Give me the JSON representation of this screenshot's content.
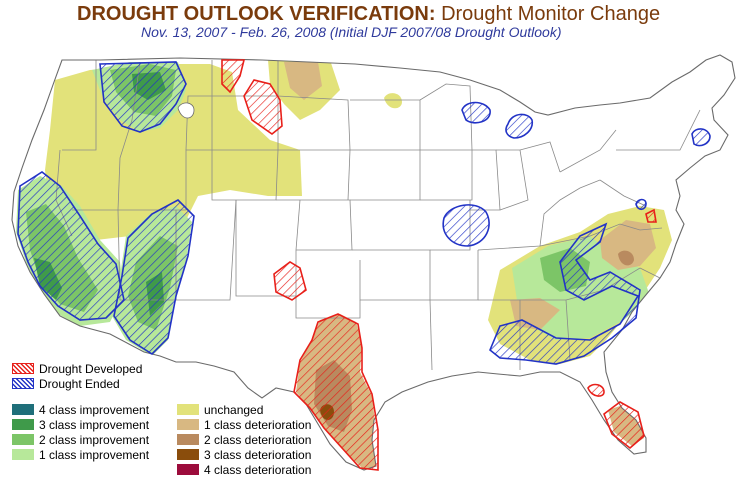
{
  "title": {
    "main": "DROUGHT OUTLOOK VERIFICATION:",
    "sub": "Drought Monitor Change"
  },
  "subtitle": "Nov. 13, 2007 - Feb. 26, 2008 (Initial DJF 2007/08 Drought Outlook)",
  "colors": {
    "improve4": "#1f6f7a",
    "improve3": "#3f9a4a",
    "improve2": "#7cc567",
    "improve1": "#b7e89a",
    "unchanged": "#e2e27a",
    "deteriorate1": "#d8b882",
    "deteriorate2": "#b98a5f",
    "deteriorate3": "#8a4d0c",
    "deteriorate4": "#9c0c3c",
    "developed_hatch": "#e8201a",
    "ended_hatch": "#2233c6",
    "state_lines": "#8a8a8a"
  },
  "legend": {
    "hatch": [
      {
        "label": "Drought Developed",
        "kind": "developed"
      },
      {
        "label": "Drought Ended",
        "kind": "ended"
      }
    ],
    "improvement": [
      {
        "label": "4 class improvement",
        "color_key": "improve4"
      },
      {
        "label": "3 class improvement",
        "color_key": "improve3"
      },
      {
        "label": "2 class improvement",
        "color_key": "improve2"
      },
      {
        "label": "1 class improvement",
        "color_key": "improve1"
      }
    ],
    "deterioration": [
      {
        "label": "unchanged",
        "color_key": "unchanged"
      },
      {
        "label": "1 class deterioration",
        "color_key": "deteriorate1"
      },
      {
        "label": "2 class deterioration",
        "color_key": "deteriorate2"
      },
      {
        "label": "3 class deterioration",
        "color_key": "deteriorate3"
      },
      {
        "label": "4 class deterioration",
        "color_key": "deteriorate4"
      }
    ]
  }
}
